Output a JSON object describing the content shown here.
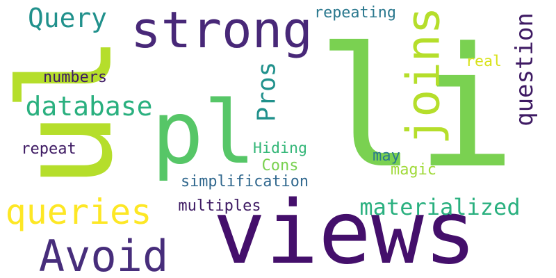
{
  "words": [
    {
      "text": "pl",
      "color": "#56c667",
      "orientation": "horizontal"
    },
    {
      "text": "li",
      "color": "#7ad151",
      "orientation": "horizontal"
    },
    {
      "text": "views",
      "color": "#440f6b",
      "orientation": "horizontal"
    },
    {
      "text": "ul",
      "color": "#b5de2b",
      "orientation": "vertical"
    },
    {
      "text": "strong",
      "color": "#482878",
      "orientation": "horizontal"
    },
    {
      "text": "joins",
      "color": "#b5de2b",
      "orientation": "vertical"
    },
    {
      "text": "Avoid",
      "color": "#472d7b",
      "orientation": "horizontal"
    },
    {
      "text": "queries",
      "color": "#fde725",
      "orientation": "horizontal"
    },
    {
      "text": "database",
      "color": "#2ab07f",
      "orientation": "horizontal"
    },
    {
      "text": "Query",
      "color": "#21918c",
      "orientation": "horizontal"
    },
    {
      "text": "materialized",
      "color": "#2ab07f",
      "orientation": "horizontal"
    },
    {
      "text": "question",
      "color": "#3e1a63",
      "orientation": "vertical"
    },
    {
      "text": "Pros",
      "color": "#21918c",
      "orientation": "vertical"
    },
    {
      "text": "repeating",
      "color": "#2a788e",
      "orientation": "horizontal"
    },
    {
      "text": "real",
      "color": "#d8e219",
      "orientation": "horizontal"
    },
    {
      "text": "numbers",
      "color": "#3e1a63",
      "orientation": "horizontal"
    },
    {
      "text": "repeat",
      "color": "#3e1a63",
      "orientation": "horizontal"
    },
    {
      "text": "Hiding",
      "color": "#35b779",
      "orientation": "horizontal"
    },
    {
      "text": "Cons",
      "color": "#7ad151",
      "orientation": "horizontal"
    },
    {
      "text": "may",
      "color": "#2a788e",
      "orientation": "horizontal"
    },
    {
      "text": "magic",
      "color": "#a0da39",
      "orientation": "horizontal"
    },
    {
      "text": "simplification",
      "color": "#31688e",
      "orientation": "horizontal"
    },
    {
      "text": "multiples",
      "color": "#3e1a63",
      "orientation": "horizontal"
    }
  ]
}
